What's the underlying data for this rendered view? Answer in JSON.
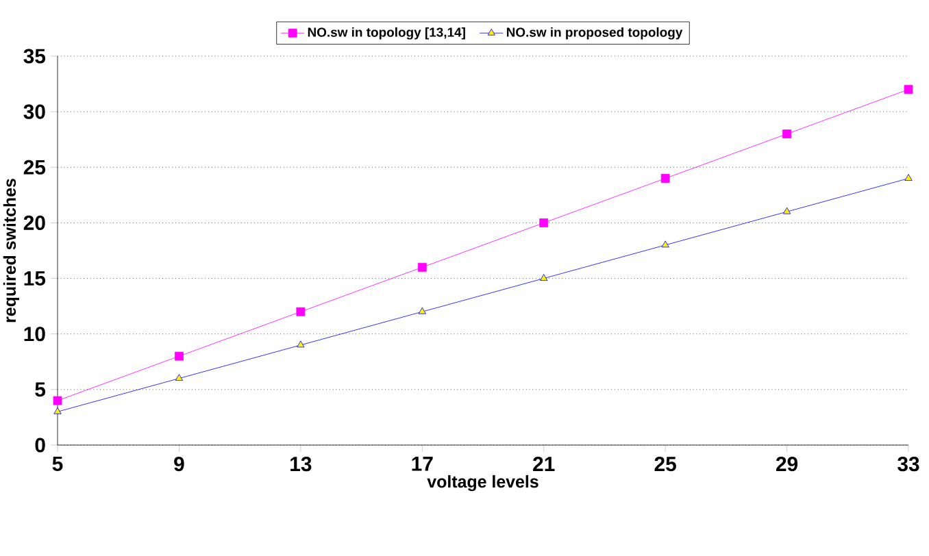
{
  "chart_data": {
    "type": "line",
    "xlabel": "voltage levels",
    "ylabel": "required switches",
    "x": [
      5,
      9,
      13,
      17,
      21,
      25,
      29,
      33
    ],
    "series": [
      {
        "name": "NO.sw in topology   [13,14]",
        "color": "#ff00ff",
        "marker": "square",
        "values": [
          4,
          8,
          12,
          16,
          20,
          24,
          28,
          32
        ]
      },
      {
        "name": "NO.sw in proposed topology",
        "color": "#0000ff",
        "marker": "triangle",
        "values": [
          3,
          6,
          9,
          12,
          15,
          18,
          21,
          24
        ]
      }
    ],
    "xlim": [
      5,
      33
    ],
    "xticks": [
      5,
      9,
      13,
      17,
      21,
      25,
      29,
      33
    ],
    "ylim": [
      0,
      35
    ],
    "yticks": [
      0,
      5,
      10,
      15,
      20,
      25,
      30,
      35
    ],
    "grid": "y",
    "legend": "top",
    "line_style": "solid"
  }
}
